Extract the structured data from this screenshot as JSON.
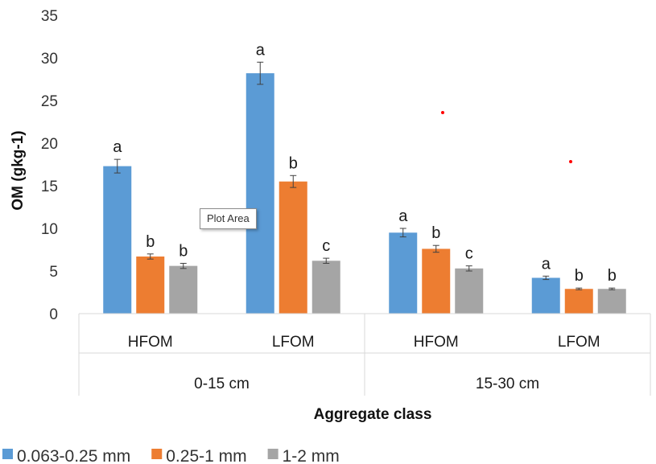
{
  "chart_data": {
    "type": "bar",
    "title": "",
    "ylabel": "OM (gkg-1)",
    "xlabel": "Aggregate class",
    "ylim": [
      0,
      35
    ],
    "yticks": [
      0,
      5,
      10,
      15,
      20,
      25,
      30,
      35
    ],
    "grid": false,
    "legend_position": "bottom-left",
    "groups": [
      {
        "label": "0-15 cm",
        "categories": [
          "HFOM",
          "LFOM"
        ]
      },
      {
        "label": "15-30 cm",
        "categories": [
          "HFOM",
          "LFOM"
        ]
      }
    ],
    "categories": [
      "HFOM",
      "LFOM",
      "HFOM",
      "LFOM"
    ],
    "series": [
      {
        "name": "0.063-0.25 mm",
        "color": "#5b9bd5",
        "values": [
          17.3,
          28.2,
          9.5,
          4.2
        ],
        "errors": [
          0.8,
          1.3,
          0.5,
          0.2
        ],
        "letters": [
          "a",
          "a",
          "a",
          "a"
        ]
      },
      {
        "name": "0.25-1 mm",
        "color": "#ed7d31",
        "values": [
          6.7,
          15.5,
          7.6,
          2.9
        ],
        "errors": [
          0.3,
          0.7,
          0.4,
          0.1
        ],
        "letters": [
          "b",
          "b",
          "b",
          "b"
        ]
      },
      {
        "name": "1-2 mm",
        "color": "#a5a5a5",
        "values": [
          5.6,
          6.2,
          5.3,
          2.9
        ],
        "errors": [
          0.3,
          0.3,
          0.3,
          0.1
        ],
        "letters": [
          "b",
          "c",
          "c",
          "b"
        ]
      }
    ],
    "tooltip": "Plot Area"
  }
}
